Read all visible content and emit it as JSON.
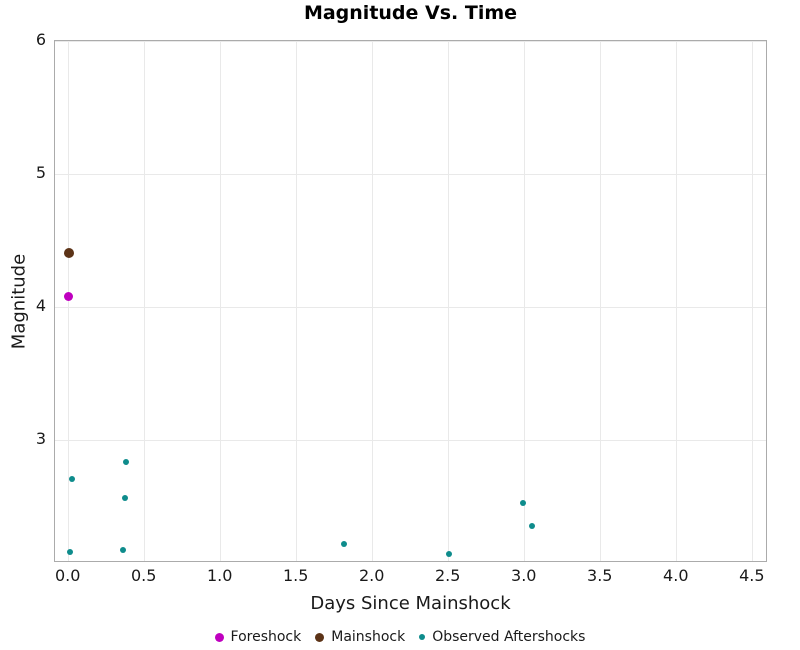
{
  "title": "Magnitude Vs. Time",
  "colors": {
    "foreshock": "#BF00BF",
    "mainshock": "#5C3317",
    "aftershock": "#0E8C8C",
    "grid": "#E9E9E9",
    "spine": "#ABABAB",
    "text": "#1A1A1A"
  },
  "chart_data": {
    "type": "scatter",
    "title": "Magnitude Vs. Time",
    "xlabel": "Days Since Mainshock",
    "ylabel": "Magnitude",
    "xlim": [
      -0.09,
      4.6
    ],
    "ylim": [
      2.08,
      6.0
    ],
    "grid": true,
    "legend_position": "bottom",
    "xticks": [
      {
        "v": 0.0,
        "label": "0.0"
      },
      {
        "v": 0.5,
        "label": "0.5"
      },
      {
        "v": 1.0,
        "label": "1.0"
      },
      {
        "v": 1.5,
        "label": "1.5"
      },
      {
        "v": 2.0,
        "label": "2.0"
      },
      {
        "v": 2.5,
        "label": "2.5"
      },
      {
        "v": 3.0,
        "label": "3.0"
      },
      {
        "v": 3.5,
        "label": "3.5"
      },
      {
        "v": 4.0,
        "label": "4.0"
      },
      {
        "v": 4.5,
        "label": "4.5"
      }
    ],
    "yticks": [
      {
        "v": 3,
        "label": "3"
      },
      {
        "v": 4,
        "label": "4"
      },
      {
        "v": 5,
        "label": "5"
      },
      {
        "v": 6,
        "label": "6"
      }
    ],
    "series": [
      {
        "name": "Foreshock",
        "color": "#BF00BF",
        "marker_size": 9,
        "points": [
          {
            "x": 0.0,
            "y": 4.08
          }
        ]
      },
      {
        "name": "Mainshock",
        "color": "#5C3317",
        "marker_size": 10,
        "points": [
          {
            "x": 0.0,
            "y": 4.41
          }
        ]
      },
      {
        "name": "Observed Aftershocks",
        "color": "#0E8C8C",
        "marker_size": 6,
        "points": [
          {
            "x": 0.01,
            "y": 2.16
          },
          {
            "x": 0.02,
            "y": 2.71
          },
          {
            "x": 0.36,
            "y": 2.18
          },
          {
            "x": 0.37,
            "y": 2.57
          },
          {
            "x": 0.38,
            "y": 2.84
          },
          {
            "x": 1.81,
            "y": 2.22
          },
          {
            "x": 2.5,
            "y": 2.15
          },
          {
            "x": 2.99,
            "y": 2.53
          },
          {
            "x": 3.05,
            "y": 2.36
          }
        ]
      }
    ]
  }
}
